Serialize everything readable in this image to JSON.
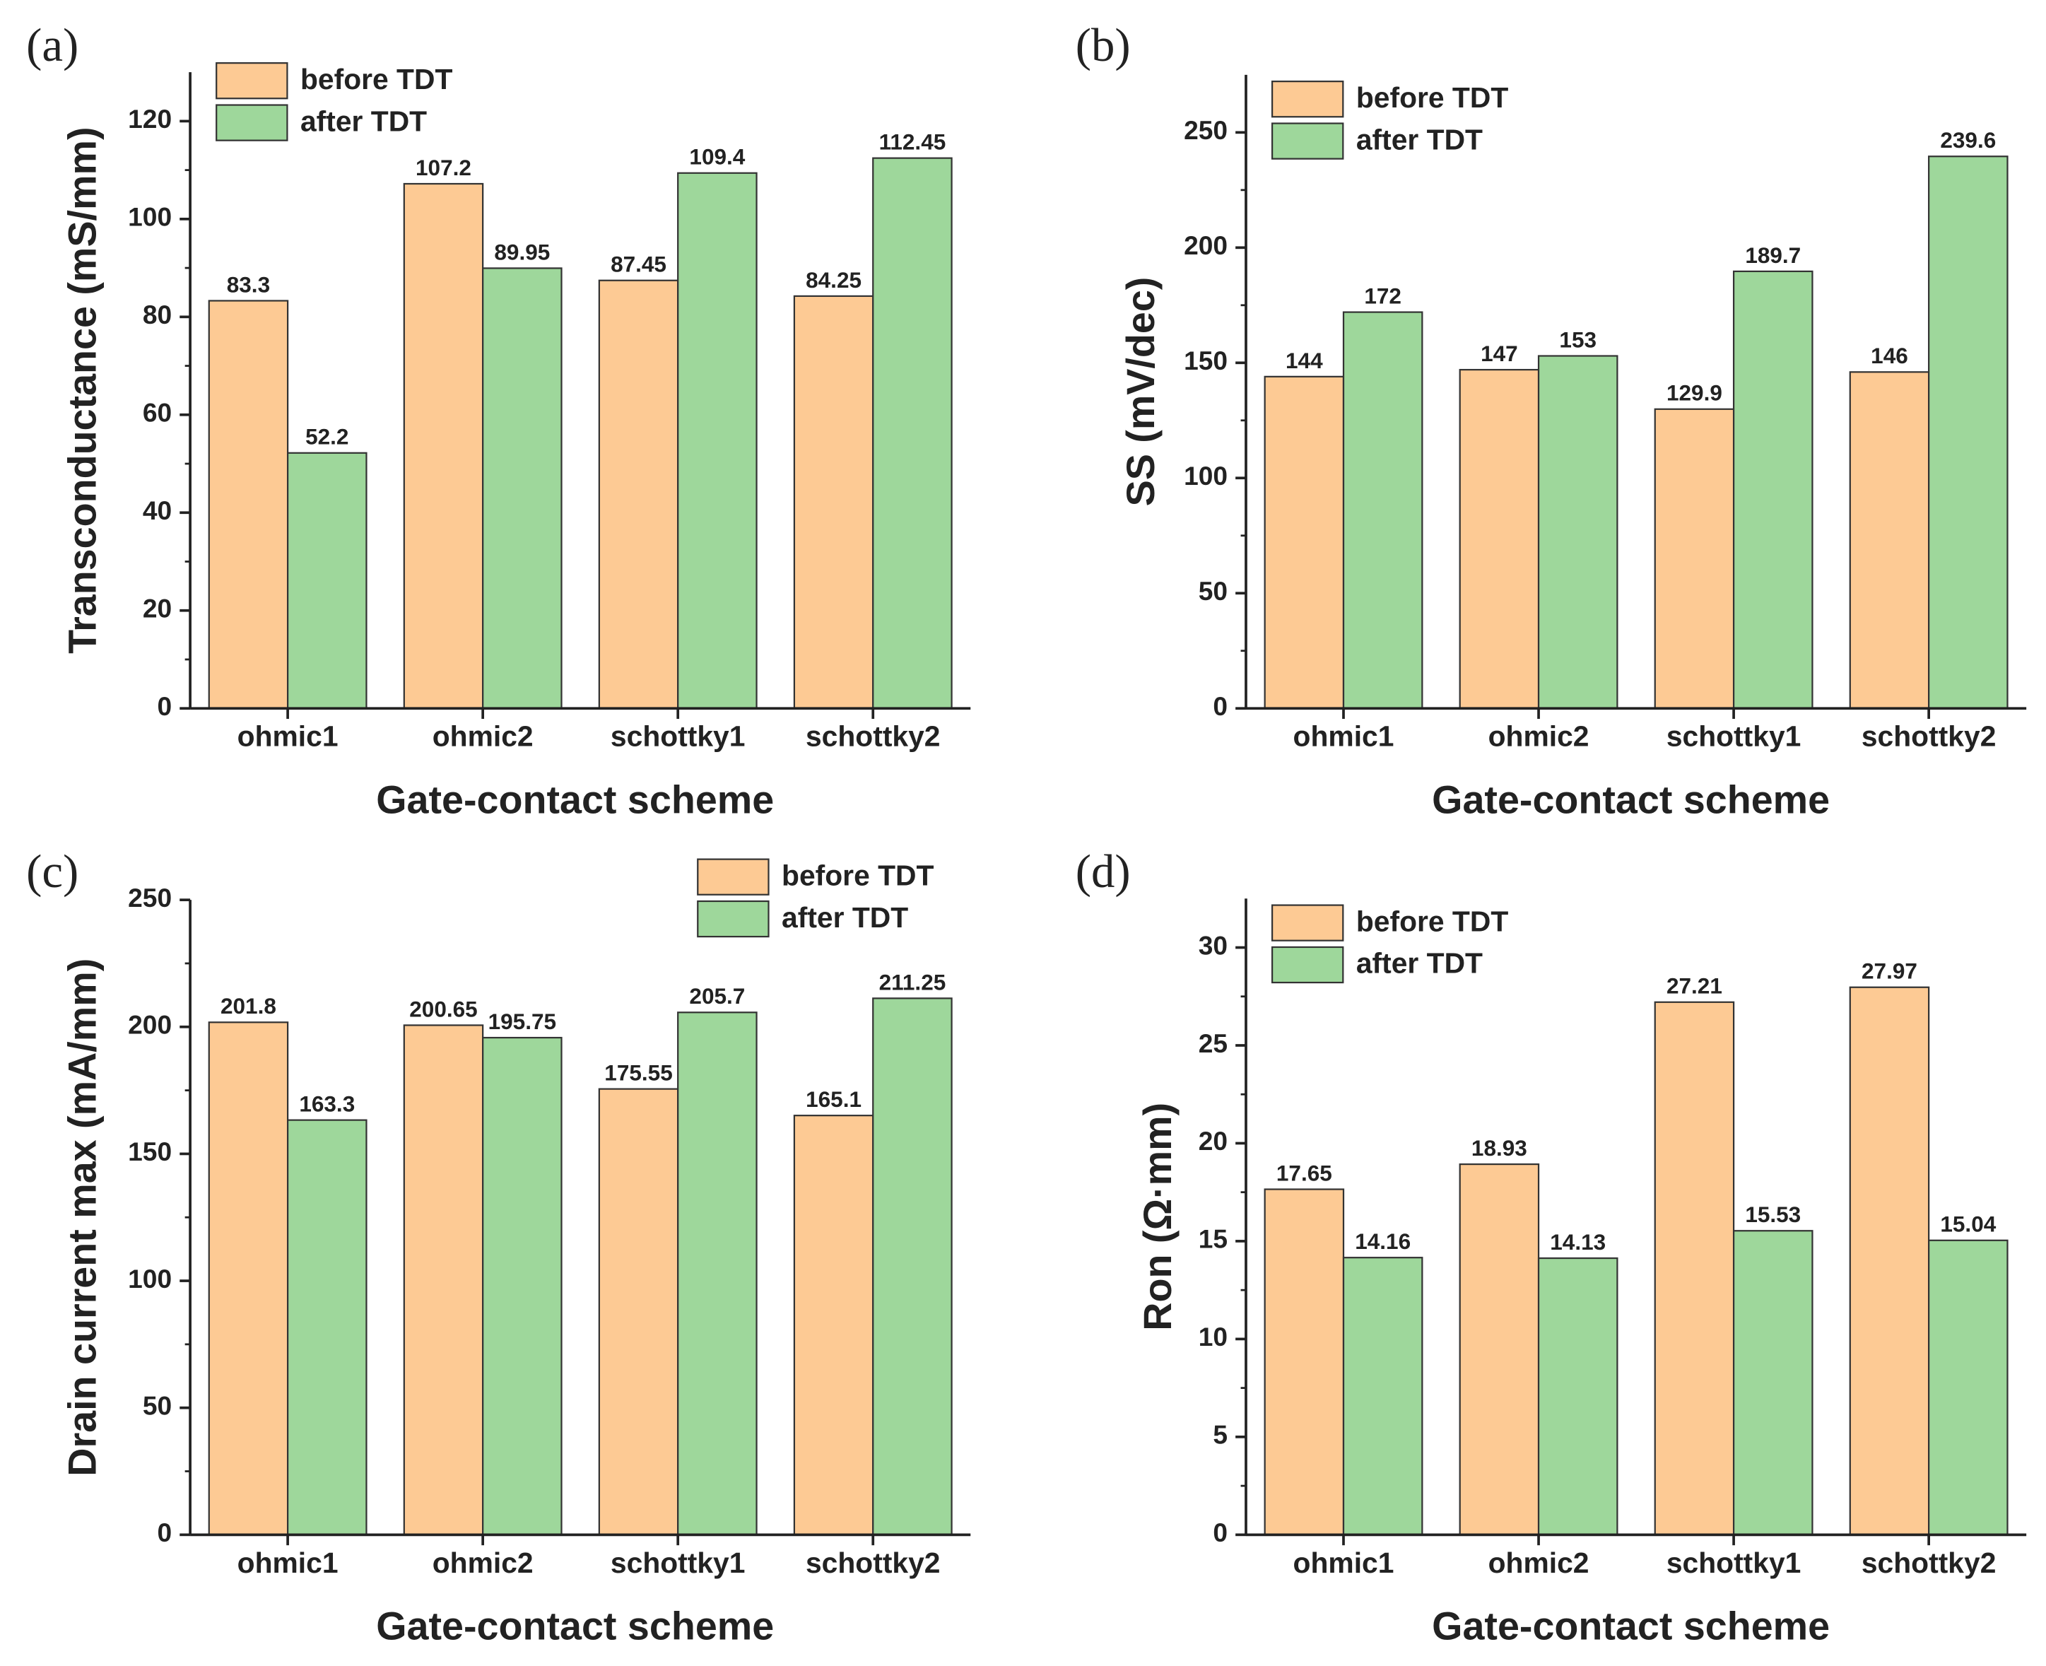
{
  "chart_data": [
    {
      "type": "bar",
      "panel": "(a)",
      "x_label": "Gate-contact scheme",
      "y_label": "Transconductance (mS/mm)",
      "categories": [
        "ohmic1",
        "ohmic2",
        "schottky1",
        "schottky2"
      ],
      "series": [
        {
          "name": "before TDT",
          "color": "#fdca94",
          "values": [
            83.3,
            107.2,
            87.45,
            84.25
          ]
        },
        {
          "name": "after TDT",
          "color": "#9ed79b",
          "values": [
            52.2,
            89.95,
            109.4,
            112.45
          ]
        }
      ],
      "ylim": [
        0,
        130
      ],
      "yticks": [
        0,
        20,
        40,
        60,
        80,
        100,
        120
      ],
      "legend": "upper left"
    },
    {
      "type": "bar",
      "panel": "(b)",
      "x_label": "Gate-contact scheme",
      "y_label": "SS (mV/dec)",
      "categories": [
        "ohmic1",
        "ohmic2",
        "schottky1",
        "schottky2"
      ],
      "series": [
        {
          "name": "before TDT",
          "color": "#fdca94",
          "values": [
            144,
            147,
            129.9,
            146
          ]
        },
        {
          "name": "after TDT",
          "color": "#9ed79b",
          "values": [
            172,
            153,
            189.7,
            239.6
          ]
        }
      ],
      "ylim": [
        0,
        275
      ],
      "yticks": [
        0,
        50,
        100,
        150,
        200,
        250
      ],
      "legend": "upper left"
    },
    {
      "type": "bar",
      "panel": "(c)",
      "x_label": "Gate-contact scheme",
      "y_label": "Drain current max (mA/mm)",
      "categories": [
        "ohmic1",
        "ohmic2",
        "schottky1",
        "schottky2"
      ],
      "series": [
        {
          "name": "before TDT",
          "color": "#fdca94",
          "values": [
            201.8,
            200.65,
            175.55,
            165.1
          ]
        },
        {
          "name": "after TDT",
          "color": "#9ed79b",
          "values": [
            163.3,
            195.75,
            205.7,
            211.25
          ]
        }
      ],
      "ylim": [
        0,
        250
      ],
      "yticks": [
        0,
        50,
        100,
        150,
        200,
        250
      ],
      "legend": "upper right"
    },
    {
      "type": "bar",
      "panel": "(d)",
      "x_label": "Gate-contact scheme",
      "y_label": "Ron (Ω·mm)",
      "categories": [
        "ohmic1",
        "ohmic2",
        "schottky1",
        "schottky2"
      ],
      "series": [
        {
          "name": "before TDT",
          "color": "#fdca94",
          "values": [
            17.65,
            18.93,
            27.21,
            27.97
          ]
        },
        {
          "name": "after TDT",
          "color": "#9ed79b",
          "values": [
            14.16,
            14.13,
            15.53,
            15.04
          ]
        }
      ],
      "ylim": [
        0,
        32.5
      ],
      "yticks": [
        0,
        5,
        10,
        15,
        20,
        25,
        30
      ],
      "legend": "upper left"
    }
  ]
}
